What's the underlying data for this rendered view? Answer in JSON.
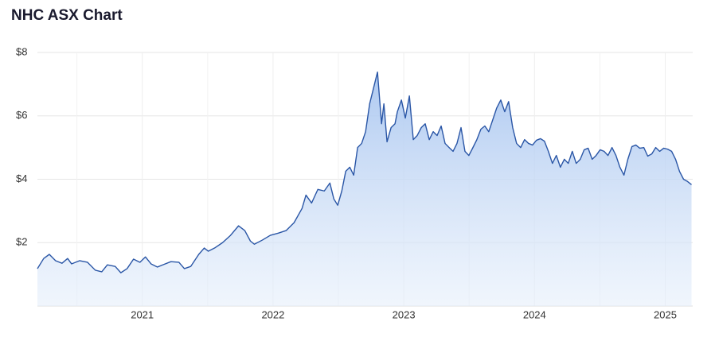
{
  "chart_data": {
    "type": "area",
    "title": "NHC ASX Chart",
    "color": "#2a56a6",
    "grid": true,
    "xlim": [
      2020.198,
      2025.21
    ],
    "xticks": [
      2021,
      2022,
      2023,
      2024,
      2025
    ],
    "ylim": [
      0,
      8
    ],
    "yticks": [
      {
        "value": 2,
        "label": "$2"
      },
      {
        "value": 4,
        "label": "$4"
      },
      {
        "value": 6,
        "label": "$6"
      },
      {
        "value": 8,
        "label": "$8"
      }
    ],
    "x": [
      2020.198,
      2020.246,
      2020.289,
      2020.337,
      2020.386,
      2020.429,
      2020.459,
      2020.52,
      2020.581,
      2020.641,
      2020.69,
      2020.733,
      2020.793,
      2020.836,
      2020.884,
      2020.933,
      2020.982,
      2021.024,
      2021.067,
      2021.116,
      2021.158,
      2021.219,
      2021.28,
      2021.322,
      2021.371,
      2021.432,
      2021.474,
      2021.505,
      2021.553,
      2021.614,
      2021.675,
      2021.736,
      2021.784,
      2021.827,
      2021.857,
      2021.918,
      2021.979,
      2022.04,
      2022.1,
      2022.161,
      2022.222,
      2022.252,
      2022.295,
      2022.343,
      2022.392,
      2022.435,
      2022.465,
      2022.495,
      2022.526,
      2022.556,
      2022.587,
      2022.617,
      2022.647,
      2022.678,
      2022.708,
      2022.739,
      2022.769,
      2022.799,
      2022.83,
      2022.848,
      2022.872,
      2022.903,
      2022.933,
      2022.951,
      2022.982,
      2023.012,
      2023.043,
      2023.073,
      2023.103,
      2023.134,
      2023.164,
      2023.195,
      2023.225,
      2023.255,
      2023.286,
      2023.316,
      2023.347,
      2023.377,
      2023.407,
      2023.438,
      2023.468,
      2023.498,
      2023.529,
      2023.559,
      2023.59,
      2023.62,
      2023.65,
      2023.681,
      2023.711,
      2023.742,
      2023.772,
      2023.802,
      2023.833,
      2023.863,
      2023.894,
      2023.924,
      2023.954,
      2023.985,
      2024.015,
      2024.046,
      2024.076,
      2024.106,
      2024.137,
      2024.167,
      2024.198,
      2024.228,
      2024.258,
      2024.289,
      2024.319,
      2024.35,
      2024.38,
      2024.41,
      2024.441,
      2024.471,
      2024.502,
      2024.532,
      2024.562,
      2024.593,
      2024.623,
      2024.653,
      2024.684,
      2024.714,
      2024.745,
      2024.775,
      2024.805,
      2024.836,
      2024.866,
      2024.897,
      2024.927,
      2024.957,
      2024.988,
      2025.018,
      2025.049,
      2025.079,
      2025.109,
      2025.14,
      2025.17,
      2025.201
    ],
    "values": [
      1.18,
      1.5,
      1.63,
      1.43,
      1.35,
      1.5,
      1.33,
      1.43,
      1.38,
      1.13,
      1.08,
      1.3,
      1.25,
      1.05,
      1.18,
      1.48,
      1.38,
      1.55,
      1.33,
      1.23,
      1.3,
      1.4,
      1.38,
      1.18,
      1.25,
      1.63,
      1.83,
      1.73,
      1.83,
      2.0,
      2.23,
      2.53,
      2.38,
      2.05,
      1.95,
      2.08,
      2.23,
      2.3,
      2.38,
      2.63,
      3.08,
      3.5,
      3.25,
      3.68,
      3.63,
      3.88,
      3.38,
      3.18,
      3.63,
      4.25,
      4.38,
      4.13,
      5.0,
      5.13,
      5.5,
      6.38,
      6.88,
      7.38,
      5.75,
      6.38,
      5.18,
      5.63,
      5.75,
      6.13,
      6.5,
      5.93,
      6.63,
      5.25,
      5.38,
      5.63,
      5.75,
      5.25,
      5.5,
      5.38,
      5.68,
      5.13,
      5.0,
      4.88,
      5.13,
      5.63,
      4.88,
      4.75,
      5.0,
      5.25,
      5.58,
      5.68,
      5.5,
      5.88,
      6.25,
      6.5,
      6.13,
      6.45,
      5.63,
      5.13,
      5.0,
      5.25,
      5.13,
      5.08,
      5.23,
      5.28,
      5.2,
      4.88,
      4.5,
      4.75,
      4.38,
      4.63,
      4.5,
      4.88,
      4.5,
      4.63,
      4.93,
      4.98,
      4.63,
      4.75,
      4.93,
      4.88,
      4.75,
      5.0,
      4.75,
      4.38,
      4.13,
      4.63,
      5.03,
      5.08,
      4.98,
      5.0,
      4.73,
      4.8,
      5.0,
      4.88,
      4.98,
      4.95,
      4.88,
      4.63,
      4.25,
      4.0,
      3.93,
      3.83
    ]
  }
}
